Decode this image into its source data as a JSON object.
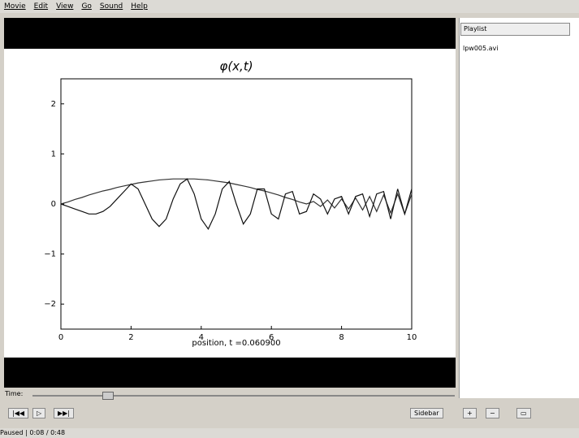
{
  "menu": [
    "Movie",
    "Edit",
    "View",
    "Go",
    "Sound",
    "Help"
  ],
  "playlist": {
    "dropdown": "Playlist",
    "items": [
      "lpw005.avi"
    ]
  },
  "controls": {
    "time_label": "Time:",
    "sidebar_button": "Sidebar",
    "status": "Paused",
    "time": "0:08 / 0:48"
  },
  "chart_data": {
    "type": "line",
    "title": "φ(x,t)",
    "x_label": "position, t =0.060900",
    "xlim": [
      0,
      10
    ],
    "ylim": [
      -2.5,
      2.5
    ],
    "xticks": [
      0,
      2,
      4,
      6,
      8,
      10
    ],
    "yticks": [
      {
        "value": -2,
        "label": "−2"
      },
      {
        "value": -1,
        "label": "−1"
      },
      0,
      1,
      2
    ],
    "x": [
      0,
      0.2,
      0.4,
      0.6,
      0.8,
      1,
      1.2,
      1.4,
      1.6,
      1.8,
      2,
      2.2,
      2.4,
      2.6,
      2.8,
      3,
      3.2,
      3.4,
      3.6,
      3.8,
      4,
      4.2,
      4.4,
      4.6,
      4.8,
      5,
      5.2,
      5.4,
      5.6,
      5.8,
      6,
      6.2,
      6.4,
      6.6,
      6.8,
      7,
      7.2,
      7.4,
      7.6,
      7.8,
      8,
      8.2,
      8.4,
      8.6,
      8.8,
      9,
      9.2,
      9.4,
      9.6,
      9.8,
      10
    ],
    "series": [
      {
        "color": "#333333",
        "values": [
          0,
          0.04,
          0.09,
          0.13,
          0.18,
          0.22,
          0.26,
          0.29,
          0.33,
          0.36,
          0.39,
          0.42,
          0.44,
          0.46,
          0.48,
          0.49,
          0.5,
          0.5,
          0.5,
          0.5,
          0.49,
          0.48,
          0.46,
          0.44,
          0.42,
          0.39,
          0.36,
          0.33,
          0.29,
          0.26,
          0.22,
          0.18,
          0.13,
          0.09,
          0.04,
          0,
          0.05,
          -0.05,
          0.08,
          -0.08,
          0.1,
          -0.1,
          0.12,
          -0.12,
          0.15,
          -0.15,
          0.18,
          -0.18,
          0.2,
          -0.2,
          0.2
        ]
      },
      {
        "color": "#111111",
        "values": [
          0,
          -0.05,
          -0.1,
          -0.15,
          -0.2,
          -0.2,
          -0.15,
          -0.05,
          0.1,
          0.25,
          0.4,
          0.3,
          0,
          -0.3,
          -0.45,
          -0.3,
          0.1,
          0.4,
          0.5,
          0.2,
          -0.3,
          -0.5,
          -0.2,
          0.3,
          0.45,
          0,
          -0.4,
          -0.2,
          0.3,
          0.3,
          -0.2,
          -0.3,
          0.2,
          0.25,
          -0.2,
          -0.15,
          0.2,
          0.1,
          -0.2,
          0.1,
          0.15,
          -0.2,
          0.15,
          0.2,
          -0.25,
          0.2,
          0.25,
          -0.3,
          0.3,
          -0.2,
          0.3
        ]
      }
    ]
  }
}
